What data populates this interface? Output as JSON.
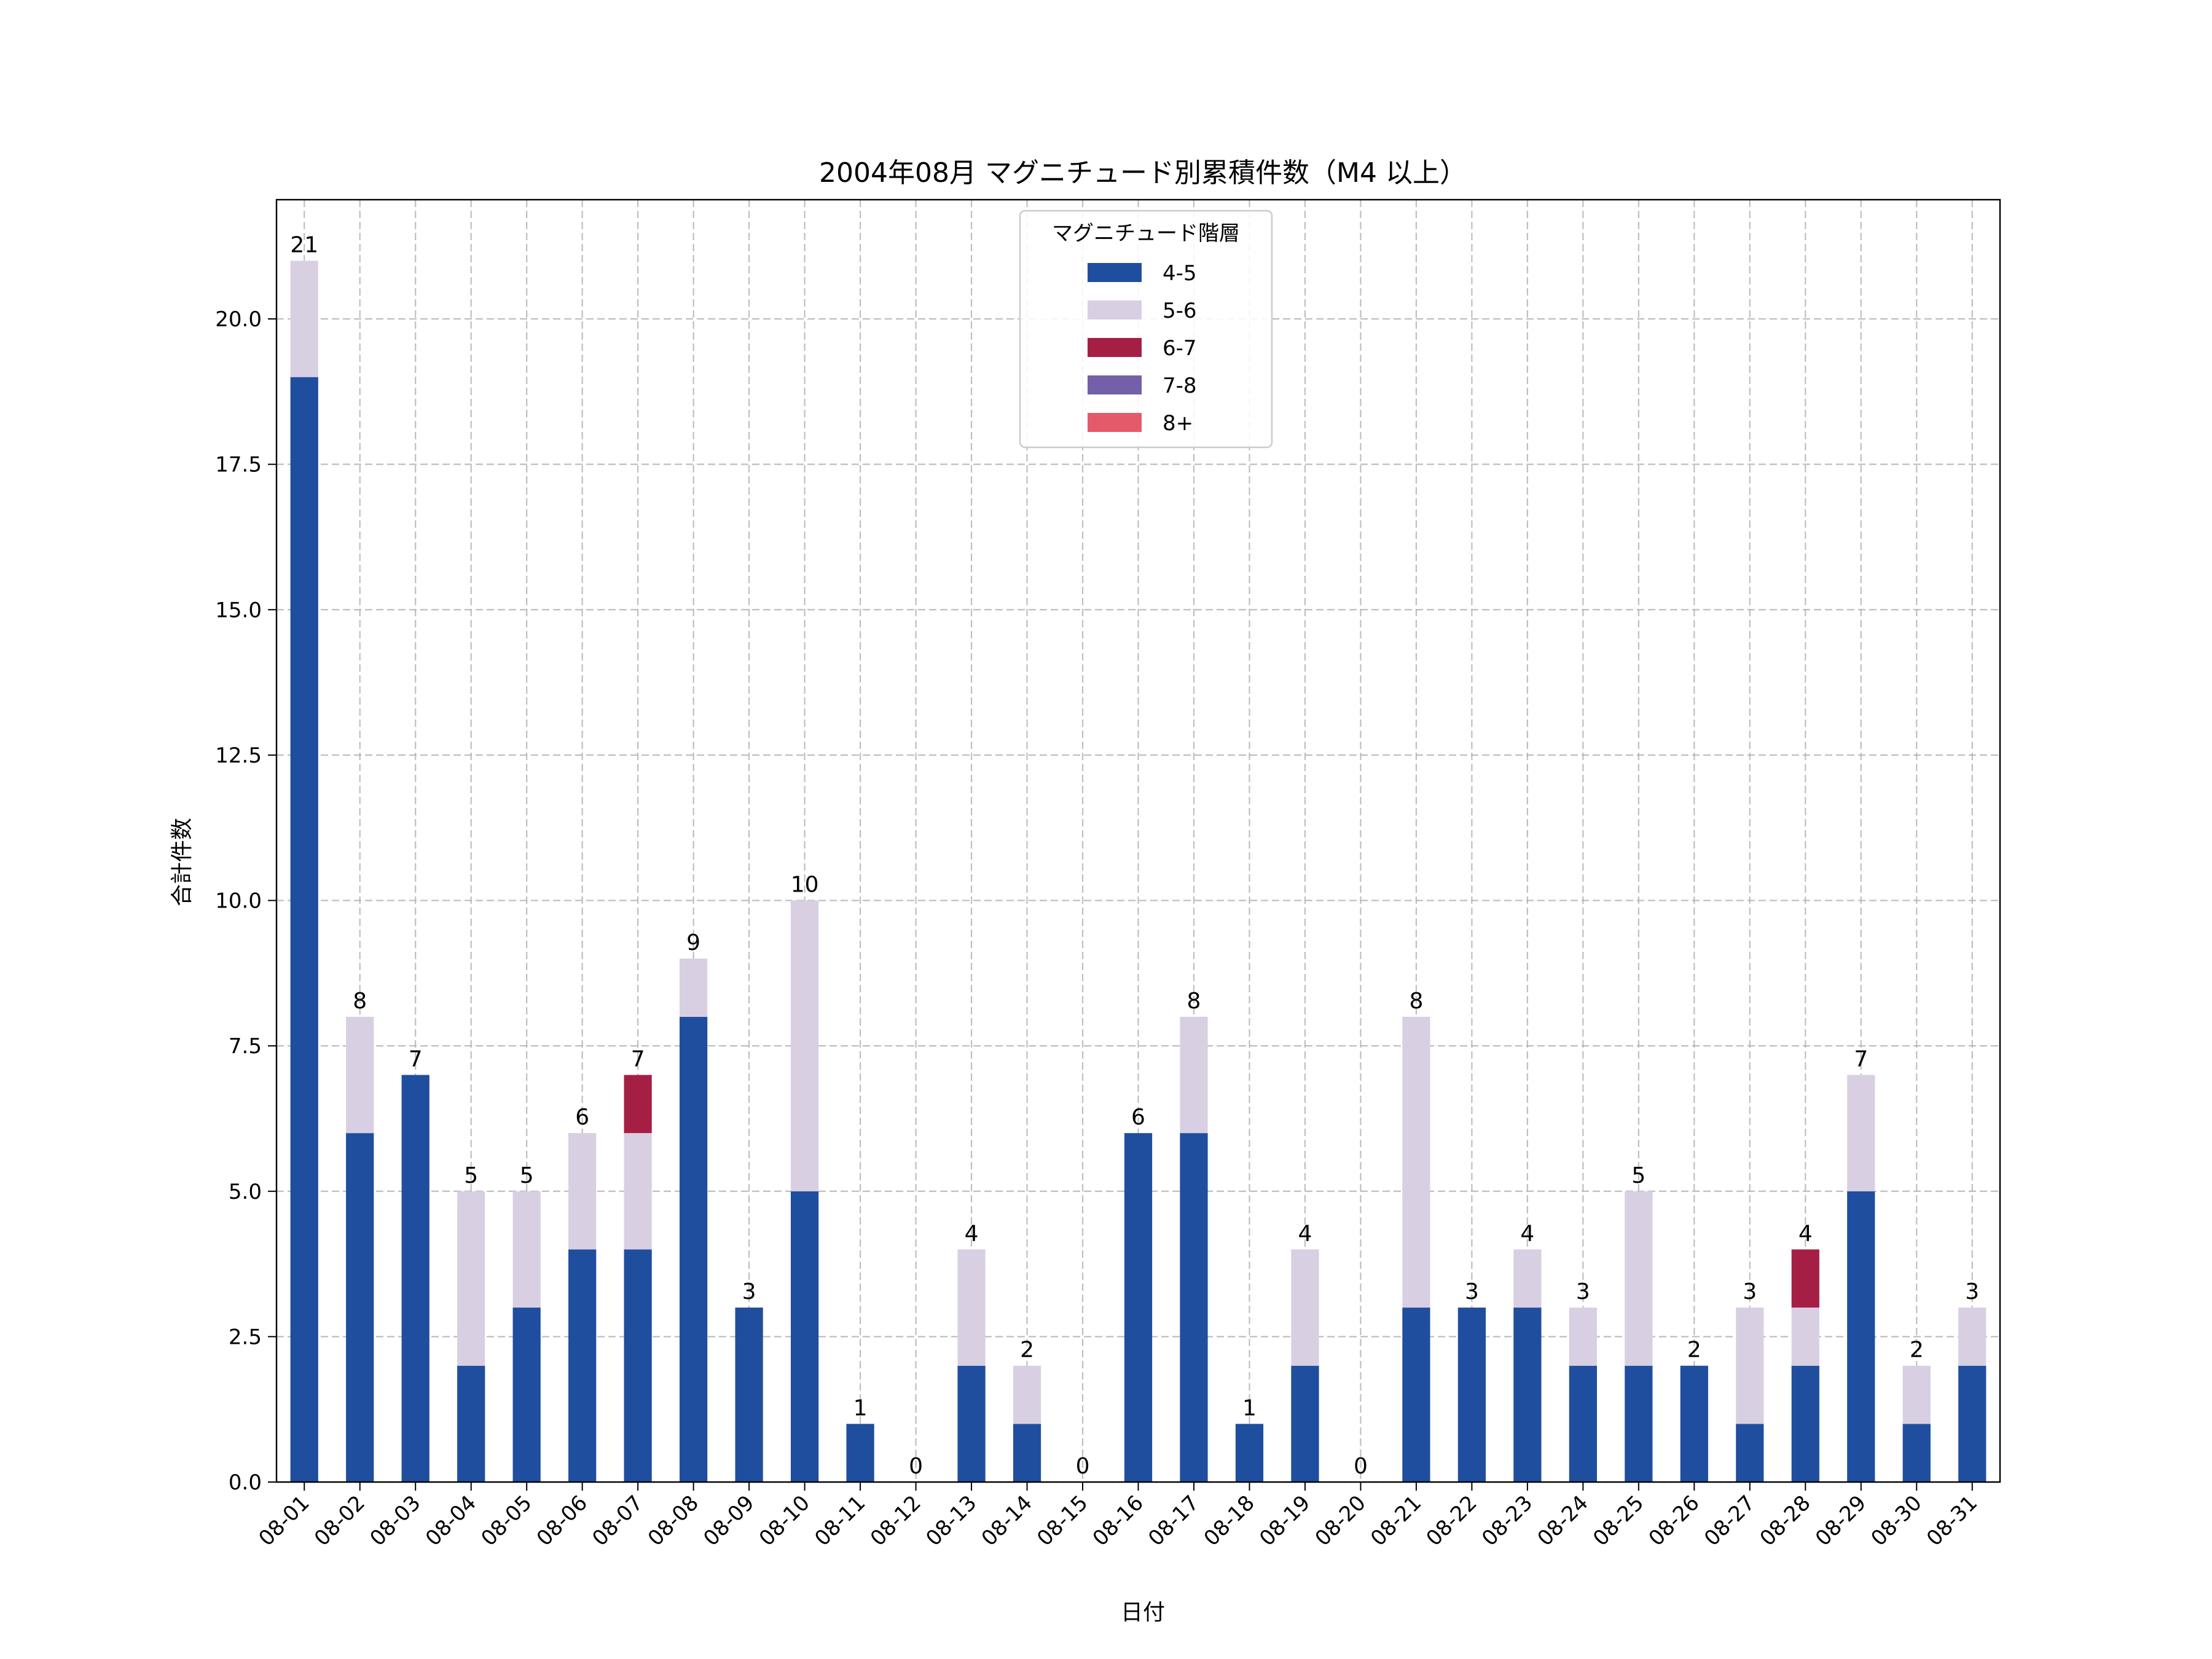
{
  "chart_data": {
    "type": "bar",
    "stacked": true,
    "title": "2004年08月 マグニチュード別累積件数（M4 以上）",
    "xlabel": "日付",
    "ylabel": "合計件数",
    "ylim": [
      0,
      22.05
    ],
    "yticks": [
      0.0,
      2.5,
      5.0,
      7.5,
      10.0,
      12.5,
      15.0,
      17.5,
      20.0
    ],
    "ytick_labels": [
      "0.0",
      "2.5",
      "5.0",
      "7.5",
      "10.0",
      "12.5",
      "15.0",
      "17.5",
      "20.0"
    ],
    "grid": true,
    "legend_position": "upper-center",
    "legend_title": "マグニチュード階層",
    "categories": [
      "08-01",
      "08-02",
      "08-03",
      "08-04",
      "08-05",
      "08-06",
      "08-07",
      "08-08",
      "08-09",
      "08-10",
      "08-11",
      "08-12",
      "08-13",
      "08-14",
      "08-15",
      "08-16",
      "08-17",
      "08-18",
      "08-19",
      "08-20",
      "08-21",
      "08-22",
      "08-23",
      "08-24",
      "08-25",
      "08-26",
      "08-27",
      "08-28",
      "08-29",
      "08-30",
      "08-31"
    ],
    "series": [
      {
        "name": "4-5",
        "color": "#1f4e9f",
        "values": [
          19,
          6,
          7,
          2,
          3,
          4,
          4,
          8,
          3,
          5,
          1,
          0,
          2,
          1,
          0,
          6,
          6,
          1,
          2,
          0,
          3,
          3,
          3,
          2,
          2,
          2,
          1,
          2,
          5,
          1,
          2
        ]
      },
      {
        "name": "5-6",
        "color": "#d9cfe3",
        "values": [
          2,
          2,
          0,
          3,
          2,
          2,
          2,
          1,
          0,
          5,
          0,
          0,
          2,
          1,
          0,
          0,
          2,
          0,
          2,
          0,
          5,
          0,
          1,
          1,
          3,
          0,
          2,
          1,
          2,
          1,
          1
        ]
      },
      {
        "name": "6-7",
        "color": "#a51f45",
        "values": [
          0,
          0,
          0,
          0,
          0,
          0,
          1,
          0,
          0,
          0,
          0,
          0,
          0,
          0,
          0,
          0,
          0,
          0,
          0,
          0,
          0,
          0,
          0,
          0,
          0,
          0,
          0,
          1,
          0,
          0,
          0
        ]
      },
      {
        "name": "7-8",
        "color": "#7360a8",
        "values": [
          0,
          0,
          0,
          0,
          0,
          0,
          0,
          0,
          0,
          0,
          0,
          0,
          0,
          0,
          0,
          0,
          0,
          0,
          0,
          0,
          0,
          0,
          0,
          0,
          0,
          0,
          0,
          0,
          0,
          0,
          0
        ]
      },
      {
        "name": "8+",
        "color": "#e45a6a",
        "values": [
          0,
          0,
          0,
          0,
          0,
          0,
          0,
          0,
          0,
          0,
          0,
          0,
          0,
          0,
          0,
          0,
          0,
          0,
          0,
          0,
          0,
          0,
          0,
          0,
          0,
          0,
          0,
          0,
          0,
          0,
          0
        ]
      }
    ],
    "totals": [
      21,
      8,
      7,
      5,
      5,
      6,
      7,
      9,
      3,
      10,
      1,
      0,
      4,
      2,
      0,
      6,
      8,
      1,
      4,
      0,
      8,
      3,
      4,
      3,
      5,
      2,
      3,
      4,
      7,
      2,
      3
    ]
  }
}
